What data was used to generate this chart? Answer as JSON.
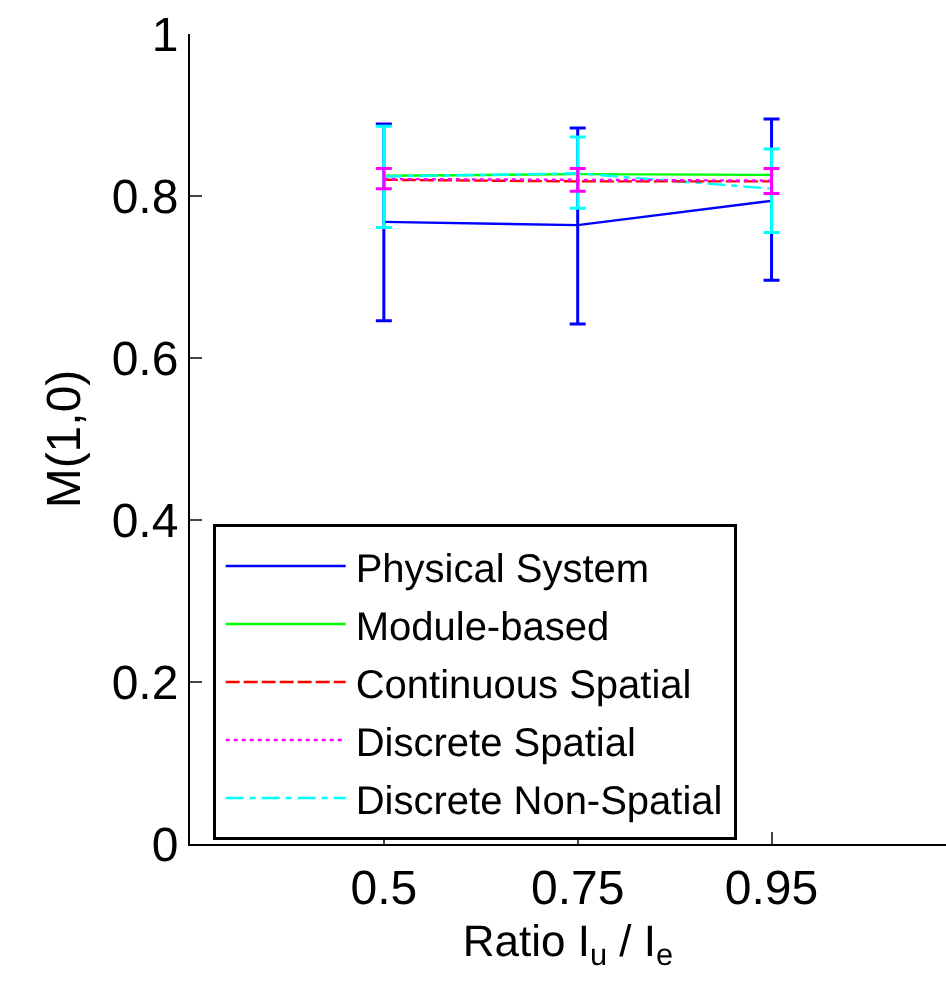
{
  "chart_data": {
    "type": "line",
    "xlabel": "Ratio I$_{u}$ / I$_{e}$",
    "ylabel": "M(1,0)",
    "categories": [
      "0.5",
      "0.75",
      "0.95"
    ],
    "series": [
      {
        "name": "Physical System",
        "color": "#0000ff",
        "line_style": "solid",
        "values": [
          0.768,
          0.764,
          0.794
        ],
        "errors": [
          [
            0.646,
            0.889
          ],
          [
            0.642,
            0.884
          ],
          [
            0.696,
            0.895
          ]
        ]
      },
      {
        "name": "Module-based",
        "color": "#00ff00",
        "line_style": "solid",
        "values": [
          0.825,
          0.827,
          0.826
        ]
      },
      {
        "name": "Continuous Spatial",
        "color": "#ff0000",
        "line_style": "dashed",
        "values": [
          0.82,
          0.818,
          0.818
        ]
      },
      {
        "name": "Discrete Spatial",
        "color": "#ff00ff",
        "line_style": "dotted",
        "values": [
          0.821,
          0.82,
          0.819
        ],
        "errors": [
          [
            0.809,
            0.834
          ],
          [
            0.806,
            0.834
          ],
          [
            0.803,
            0.834
          ]
        ]
      },
      {
        "name": "Discrete Non-Spatial",
        "color": "#00ffff",
        "line_style": "dashdot",
        "values": [
          0.824,
          0.828,
          0.809
        ],
        "errors": [
          [
            0.761,
            0.886
          ],
          [
            0.785,
            0.873
          ],
          [
            0.755,
            0.858
          ]
        ]
      }
    ],
    "ylim": [
      0,
      1
    ],
    "yticks": [
      0,
      0.2,
      0.4,
      0.6,
      0.8,
      1
    ],
    "legend": "bottom left"
  }
}
